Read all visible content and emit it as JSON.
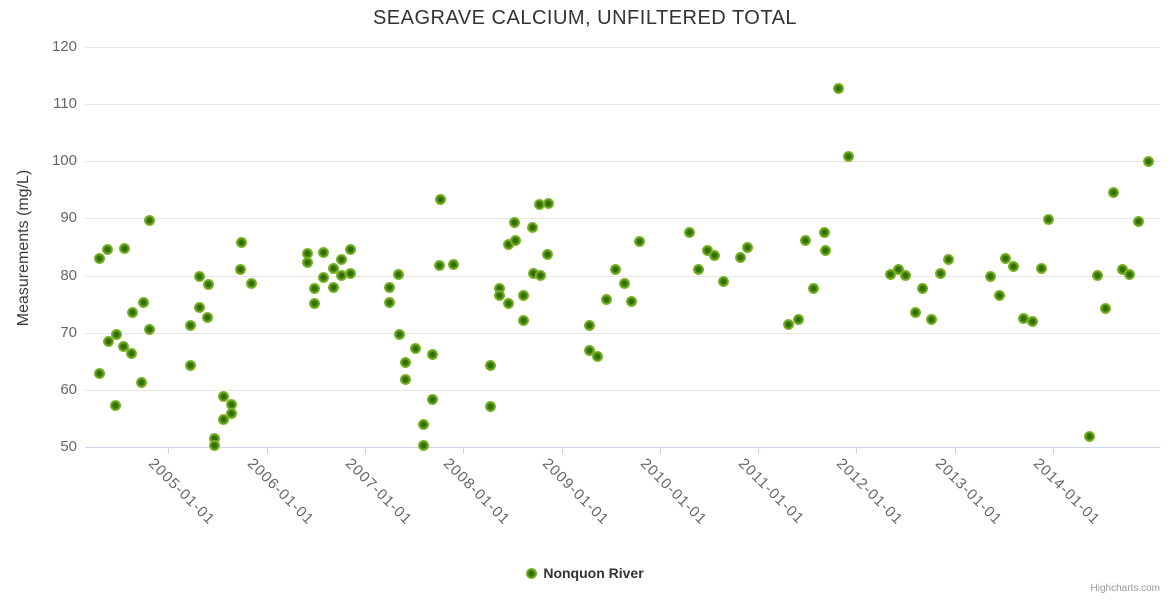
{
  "title": "SEAGRAVE CALCIUM, UNFILTERED TOTAL",
  "y_axis": {
    "title": "Measurements (mg/L)",
    "ticks": [
      50,
      60,
      70,
      80,
      90,
      100,
      110,
      120
    ],
    "min": 50,
    "max": 120
  },
  "x_axis": {
    "tick_labels": [
      "2005-01-01",
      "2006-01-01",
      "2007-01-01",
      "2008-01-01",
      "2009-01-01",
      "2010-01-01",
      "2011-01-01",
      "2012-01-01",
      "2013-01-01",
      "2014-01-01"
    ]
  },
  "legend": {
    "series_label": "Nonquon River"
  },
  "credits": "Highcharts.com",
  "colors": {
    "point_core": "#2f7006",
    "point_mid": "#6ea51c",
    "point_outer": "#8bc43c",
    "grid": "#e6e6e6",
    "axis_line": "#ccd6eb",
    "label": "#666666",
    "title": "#333333"
  },
  "chart_data": {
    "type": "scatter",
    "title": "SEAGRAVE CALCIUM, UNFILTERED TOTAL",
    "xlabel": "",
    "ylabel": "Measurements (mg/L)",
    "ylim": [
      50,
      120
    ],
    "x_is_time": true,
    "grid": true,
    "legend_position": "bottom-center",
    "series": [
      {
        "name": "Nonquon River",
        "points": [
          [
            "2004-04-20",
            83.0
          ],
          [
            "2004-04-21",
            62.8
          ],
          [
            "2004-05-21",
            84.6
          ],
          [
            "2004-05-22",
            68.5
          ],
          [
            "2004-06-18",
            57.2
          ],
          [
            "2004-06-22",
            69.7
          ],
          [
            "2004-07-19",
            67.6
          ],
          [
            "2004-07-21",
            84.7
          ],
          [
            "2004-08-19",
            66.4
          ],
          [
            "2004-08-20",
            73.6
          ],
          [
            "2004-09-25",
            61.3
          ],
          [
            "2004-09-29",
            75.3
          ],
          [
            "2004-10-22",
            89.6
          ],
          [
            "2004-10-23",
            70.6
          ],
          [
            "2005-03-23",
            71.2
          ],
          [
            "2005-03-23",
            64.2
          ],
          [
            "2005-04-28",
            79.8
          ],
          [
            "2005-04-28",
            74.5
          ],
          [
            "2005-05-27",
            72.6
          ],
          [
            "2005-05-30",
            78.5
          ],
          [
            "2005-06-20",
            51.5
          ],
          [
            "2005-06-22",
            50.3
          ],
          [
            "2005-07-24",
            58.9
          ],
          [
            "2005-07-24",
            54.9
          ],
          [
            "2005-08-23",
            57.4
          ],
          [
            "2005-08-23",
            55.9
          ],
          [
            "2005-09-28",
            81.1
          ],
          [
            "2005-10-01",
            85.8
          ],
          [
            "2005-11-06",
            78.7
          ],
          [
            "2006-06-01",
            83.9
          ],
          [
            "2006-06-01",
            82.3
          ],
          [
            "2006-06-30",
            77.8
          ],
          [
            "2006-06-30",
            75.2
          ],
          [
            "2006-07-31",
            84.0
          ],
          [
            "2006-07-31",
            79.7
          ],
          [
            "2006-09-05",
            81.2
          ],
          [
            "2006-09-05",
            77.9
          ],
          [
            "2006-10-07",
            82.9
          ],
          [
            "2006-10-07",
            80.1
          ],
          [
            "2006-11-09",
            84.5
          ],
          [
            "2006-11-09",
            80.4
          ],
          [
            "2007-04-04",
            78.0
          ],
          [
            "2007-04-04",
            75.3
          ],
          [
            "2007-05-05",
            80.2
          ],
          [
            "2007-05-09",
            69.7
          ],
          [
            "2007-06-02",
            61.9
          ],
          [
            "2007-06-03",
            64.8
          ],
          [
            "2007-07-10",
            67.3
          ],
          [
            "2007-08-06",
            50.2
          ],
          [
            "2007-08-09",
            53.9
          ],
          [
            "2007-09-10",
            66.2
          ],
          [
            "2007-09-10",
            58.4
          ],
          [
            "2007-10-04",
            81.8
          ],
          [
            "2007-10-10",
            93.4
          ],
          [
            "2007-11-26",
            82.0
          ],
          [
            "2008-04-13",
            64.2
          ],
          [
            "2008-04-13",
            57.1
          ],
          [
            "2008-05-17",
            77.7
          ],
          [
            "2008-05-17",
            76.6
          ],
          [
            "2008-06-17",
            85.4
          ],
          [
            "2008-06-17",
            75.2
          ],
          [
            "2008-07-12",
            89.3
          ],
          [
            "2008-07-15",
            86.2
          ],
          [
            "2008-08-12",
            76.6
          ],
          [
            "2008-08-12",
            72.1
          ],
          [
            "2008-09-15",
            88.4
          ],
          [
            "2008-09-20",
            80.3
          ],
          [
            "2008-10-10",
            92.5
          ],
          [
            "2008-10-15",
            80.1
          ],
          [
            "2008-11-10",
            83.7
          ],
          [
            "2008-11-15",
            92.7
          ],
          [
            "2009-04-15",
            66.9
          ],
          [
            "2009-04-16",
            71.3
          ],
          [
            "2009-05-16",
            65.9
          ],
          [
            "2009-06-18",
            75.9
          ],
          [
            "2009-07-20",
            81.0
          ],
          [
            "2009-08-24",
            78.6
          ],
          [
            "2009-09-19",
            75.4
          ],
          [
            "2009-10-18",
            86.0
          ],
          [
            "2010-04-23",
            87.5
          ],
          [
            "2010-05-24",
            81.1
          ],
          [
            "2010-06-26",
            84.4
          ],
          [
            "2010-07-25",
            83.6
          ],
          [
            "2010-08-26",
            79.0
          ],
          [
            "2010-10-27",
            83.2
          ],
          [
            "2010-11-22",
            85.0
          ],
          [
            "2011-04-23",
            71.5
          ],
          [
            "2011-06-02",
            72.4
          ],
          [
            "2011-06-28",
            86.1
          ],
          [
            "2011-07-27",
            77.8
          ],
          [
            "2011-09-04",
            87.5
          ],
          [
            "2011-09-10",
            84.4
          ],
          [
            "2011-10-28",
            112.8
          ],
          [
            "2011-12-04",
            100.9
          ],
          [
            "2012-05-07",
            80.2
          ],
          [
            "2012-06-05",
            81.1
          ],
          [
            "2012-07-03",
            80.0
          ],
          [
            "2012-08-10",
            73.6
          ],
          [
            "2012-09-05",
            77.8
          ],
          [
            "2012-10-06",
            72.3
          ],
          [
            "2012-11-08",
            80.3
          ],
          [
            "2012-12-09",
            82.9
          ],
          [
            "2013-05-14",
            79.8
          ],
          [
            "2013-06-16",
            76.6
          ],
          [
            "2013-07-07",
            83.0
          ],
          [
            "2013-08-06",
            81.6
          ],
          [
            "2013-09-14",
            72.5
          ],
          [
            "2013-10-16",
            72.0
          ],
          [
            "2013-11-18",
            81.3
          ],
          [
            "2013-12-16",
            89.9
          ],
          [
            "2014-05-17",
            51.9
          ],
          [
            "2014-06-14",
            80.1
          ],
          [
            "2014-07-15",
            74.3
          ],
          [
            "2014-08-15",
            94.5
          ],
          [
            "2014-09-17",
            81.1
          ],
          [
            "2014-10-13",
            80.2
          ],
          [
            "2014-11-16",
            89.5
          ],
          [
            "2014-12-23",
            99.9
          ]
        ]
      }
    ]
  }
}
